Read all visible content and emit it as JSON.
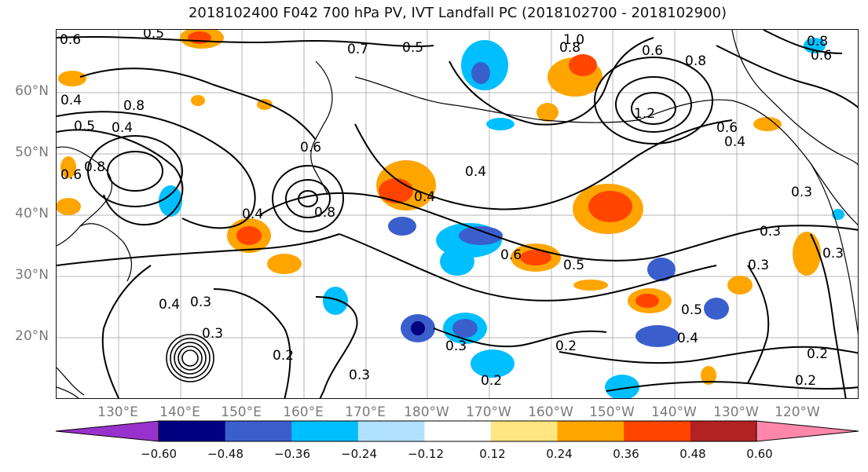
{
  "title": "2018102400 F042 700 hPa PV, IVT Landfall PC (2018102700 - 2018102900)",
  "latitude_labels": [
    "60°N",
    "50°N",
    "40°N",
    "30°N",
    "20°N"
  ],
  "longitude_labels": [
    "130°E",
    "140°E",
    "150°E",
    "160°E",
    "170°E",
    "180°W",
    "170°W",
    "160°W",
    "150°W",
    "140°W",
    "130°W",
    "120°W"
  ],
  "contour_labels": [
    "0.6",
    "0.5",
    "0.7",
    "0.5",
    "1.0",
    "0.8",
    "0.6",
    "0.8",
    "0.6",
    "0.8",
    "0.4",
    "0.8",
    "0.5",
    "0.4",
    "0.6",
    "0.8",
    "1.2",
    "0.4",
    "0.4",
    "0.6",
    "0.4",
    "0.8",
    "0.4",
    "0.6",
    "0.6",
    "0.3",
    "0.3",
    "0.5",
    "0.3",
    "0.3",
    "0.3",
    "0.4",
    "0.3",
    "0.2",
    "0.3",
    "0.3",
    "0.5",
    "0.4",
    "0.2",
    "0.2",
    "0.2",
    "0.2"
  ],
  "colorbar": {
    "tick_labels": [
      "−0.60",
      "−0.48",
      "−0.36",
      "−0.24",
      "−0.12",
      "0.12",
      "0.24",
      "0.36",
      "0.48",
      "0.60"
    ],
    "colors": [
      "#9932cc",
      "#000080",
      "#3a5fcd",
      "#00bfff",
      "#b0e2ff",
      "#ffffff",
      "#ffe680",
      "#ffa500",
      "#ff4500",
      "#b22222",
      "#ff88aa"
    ]
  }
}
